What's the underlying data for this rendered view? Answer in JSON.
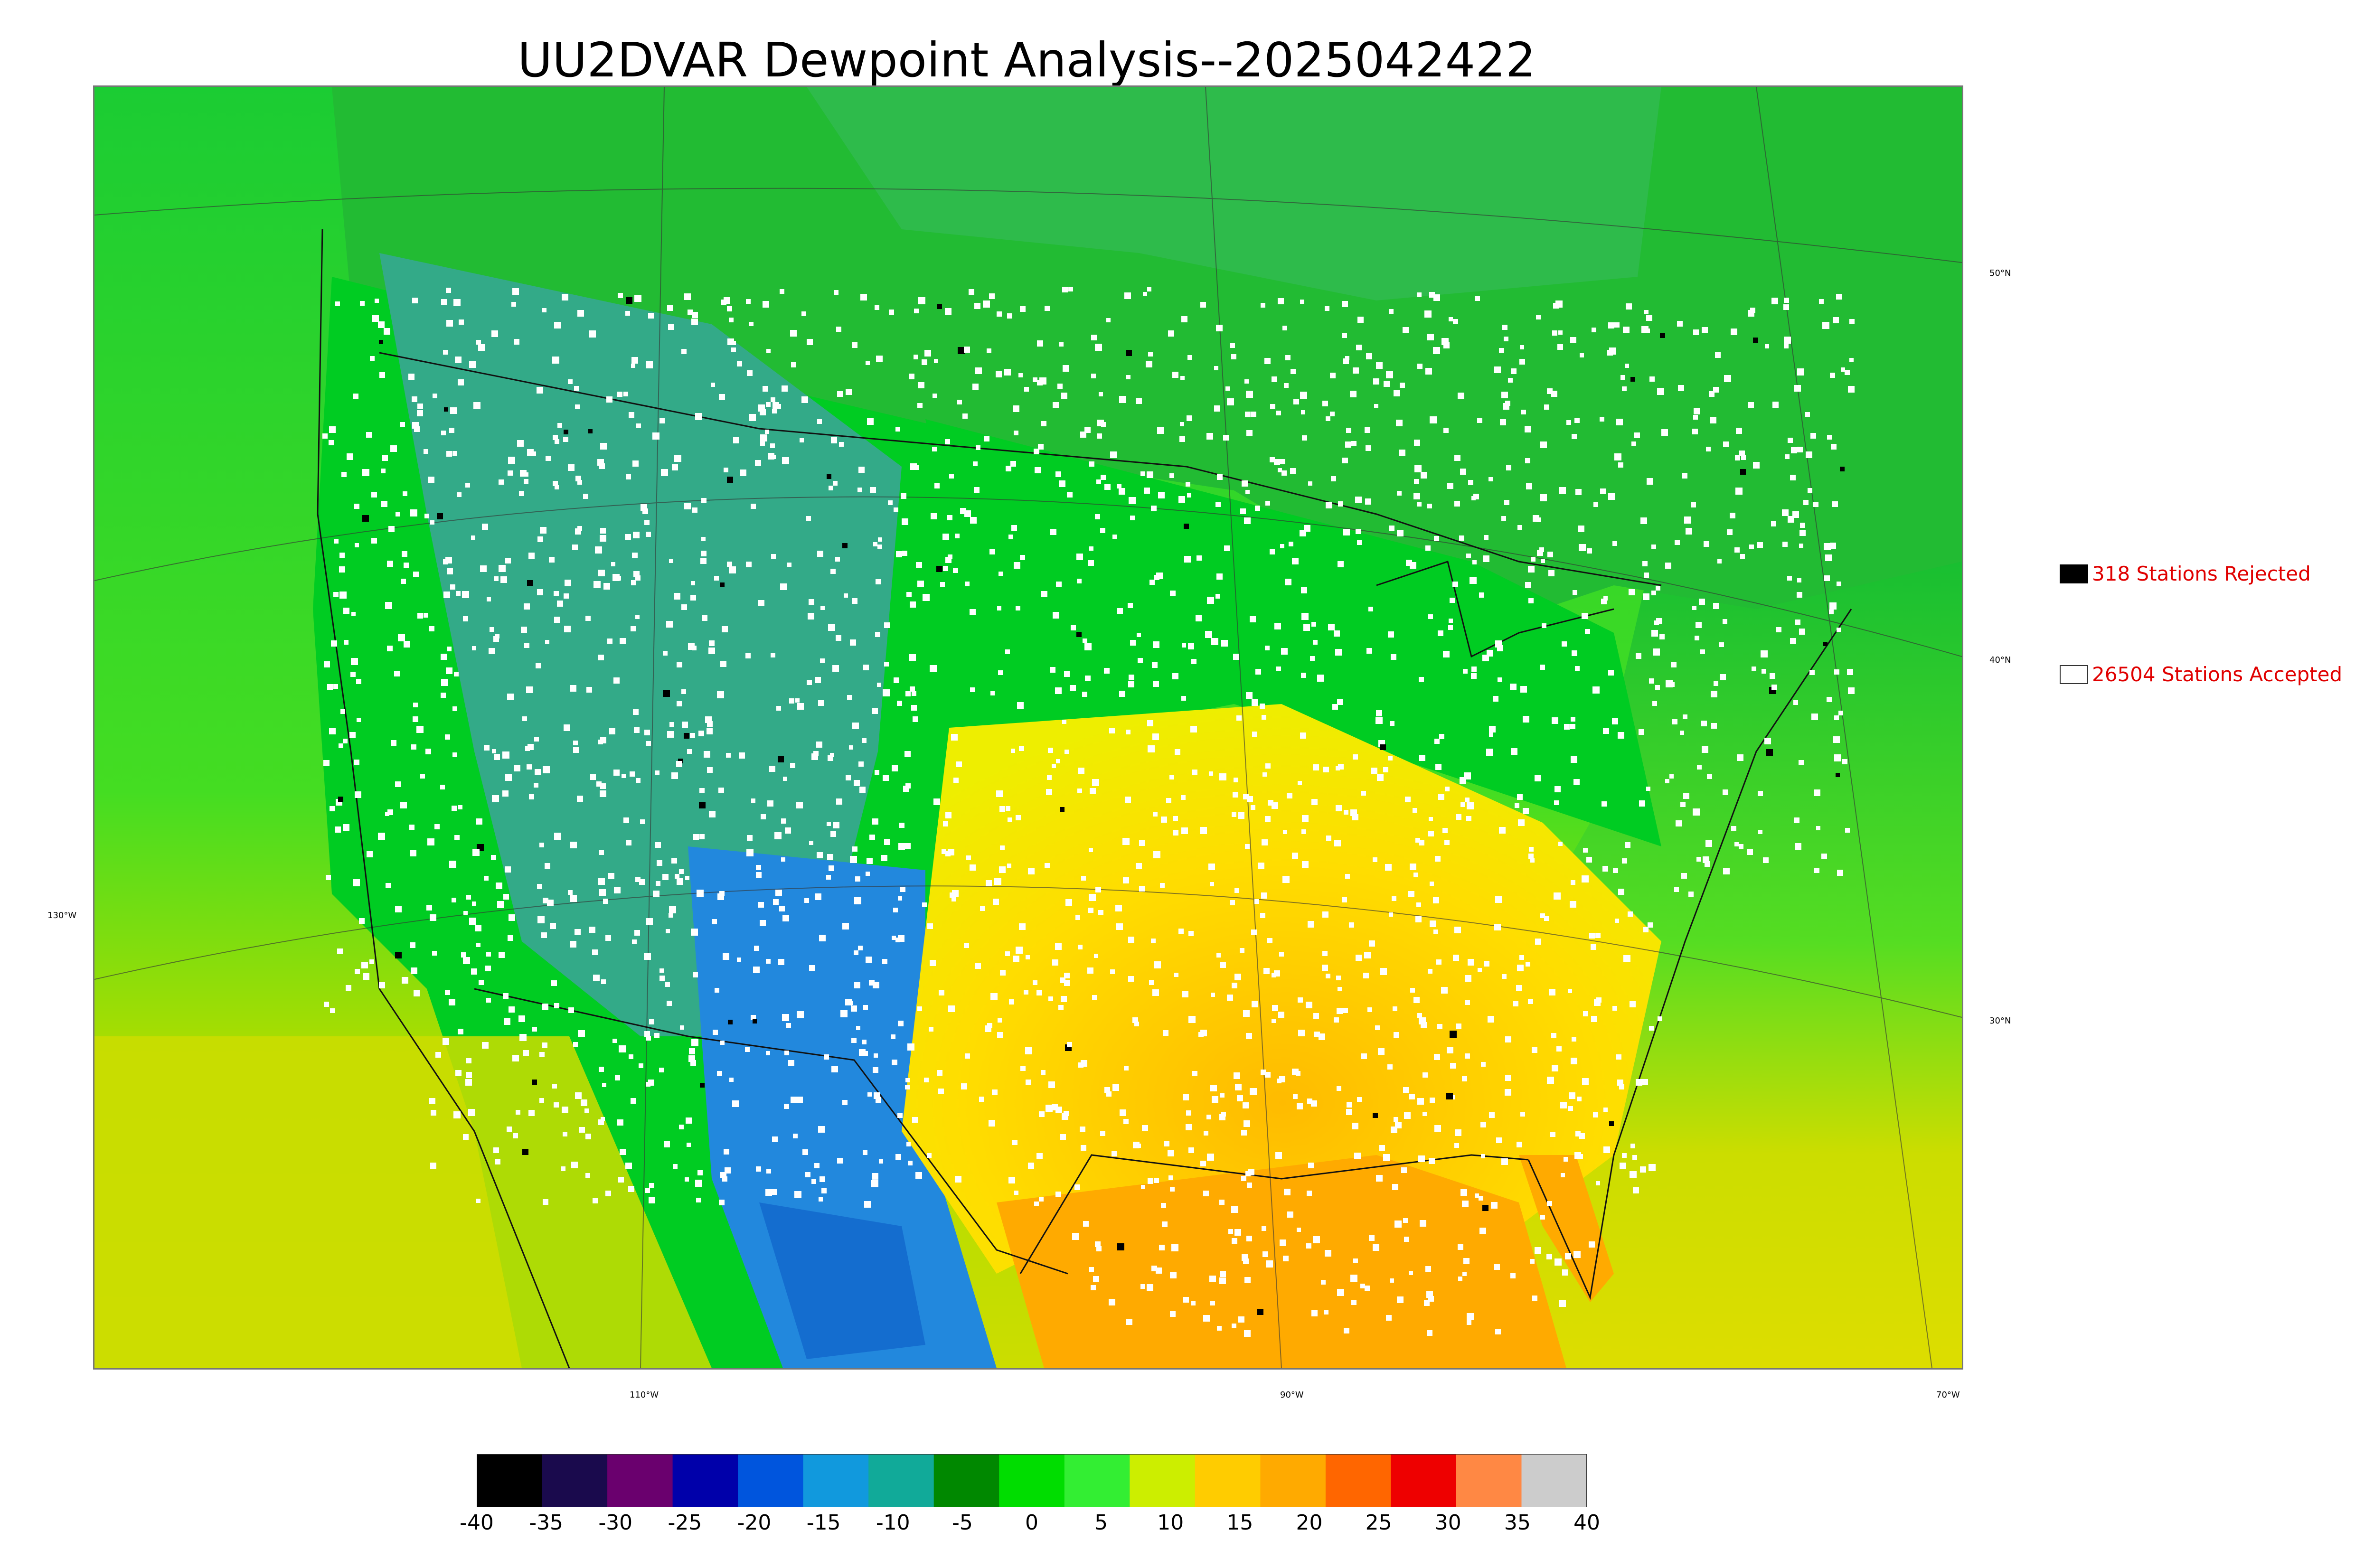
{
  "title": "UU2DVAR Dewpoint Analysis--2025042422",
  "legend": {
    "rejected": "318 Stations Rejected",
    "accepted": "26504 Stations Accepted",
    "rejected_color": "#000000",
    "accepted_color": "#ffffff"
  },
  "lat_labels": [
    "50°N",
    "40°N",
    "30°N"
  ],
  "lon_labels": [
    "130°W",
    "110°W",
    "90°W",
    "70°W"
  ],
  "colorbar": {
    "ticks": [
      "-40",
      "-35",
      "-30",
      "-25",
      "-20",
      "-15",
      "-10",
      "-5",
      "0",
      "5",
      "10",
      "15",
      "20",
      "25",
      "30",
      "35",
      "40"
    ],
    "colors": [
      "#000000",
      "#1a0a4d",
      "#6a006e",
      "#0000aa",
      "#0055dd",
      "#1199dd",
      "#11aa99",
      "#008800",
      "#00dd00",
      "#33ee33",
      "#ccee00",
      "#ffcc00",
      "#ffaa00",
      "#ff6600",
      "#ee0000",
      "#ff8844",
      "#cccccc"
    ]
  },
  "map_colors": {
    "ocean_west": "#22cc22",
    "ocean_south": "#ddcc00",
    "gulf": "#ffaa00",
    "rockies": "#33aa88",
    "southwest": "#2288dd",
    "plains": "#00cc22",
    "southeast": "#ffcc00",
    "canada": "#22bb33"
  }
}
